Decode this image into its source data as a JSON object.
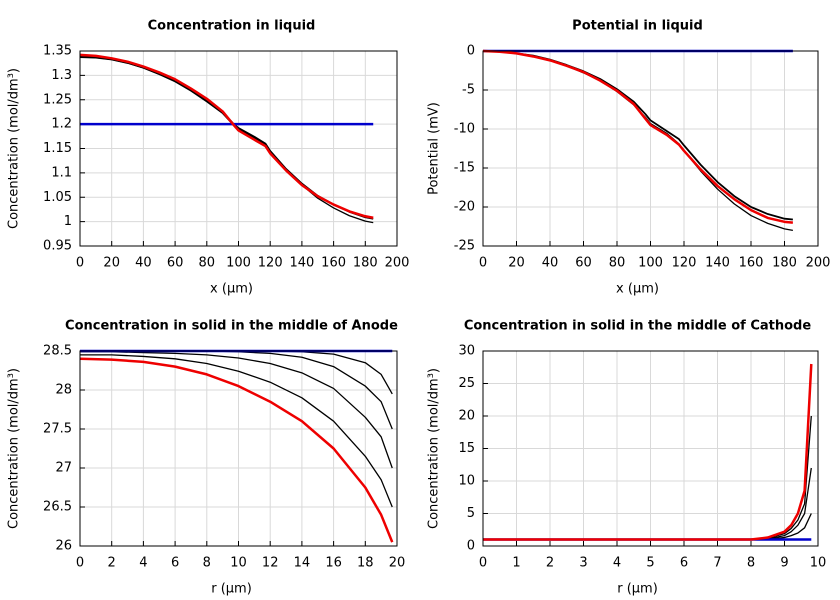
{
  "chart_data": [
    {
      "type": "line",
      "title": "Concentration in liquid",
      "xlabel": "x (µm)",
      "ylabel": "Concentration (mol/dm³)",
      "x": [
        0,
        10,
        20,
        30,
        40,
        50,
        60,
        70,
        80,
        90,
        97,
        100,
        110,
        117,
        120,
        130,
        140,
        150,
        160,
        170,
        180,
        185
      ],
      "xlim": [
        0,
        200
      ],
      "ylim": [
        0.95,
        1.35
      ],
      "grid": true,
      "xticks": [
        0,
        20,
        40,
        60,
        80,
        100,
        120,
        140,
        160,
        180,
        200
      ],
      "yticks": [
        0.95,
        1,
        1.05,
        1.1,
        1.15,
        1.2,
        1.25,
        1.3,
        1.35
      ],
      "series": [
        {
          "color": "#000000",
          "width": 1.3,
          "values": [
            1.337,
            1.336,
            1.332,
            1.325,
            1.315,
            1.302,
            1.287,
            1.268,
            1.246,
            1.222,
            1.197,
            1.19,
            1.172,
            1.158,
            1.143,
            1.106,
            1.075,
            1.048,
            1.028,
            1.012,
            1.001,
            0.998
          ]
        },
        {
          "color": "#000000",
          "width": 1.8,
          "values": [
            1.338,
            1.337,
            1.333,
            1.326,
            1.316,
            1.303,
            1.289,
            1.27,
            1.249,
            1.224,
            1.2,
            1.192,
            1.174,
            1.16,
            1.145,
            1.108,
            1.078,
            1.053,
            1.035,
            1.02,
            1.009,
            1.006
          ]
        },
        {
          "color": "#0000cc",
          "width": 2.5,
          "values": [
            1.2,
            1.2,
            1.2,
            1.2,
            1.2,
            1.2,
            1.2,
            1.2,
            1.2,
            1.2,
            1.2,
            1.2,
            1.2,
            1.2,
            1.2,
            1.2,
            1.2,
            1.2,
            1.2,
            1.2,
            1.2,
            1.2
          ]
        },
        {
          "color": "#ee0000",
          "width": 2.5,
          "values": [
            1.342,
            1.34,
            1.335,
            1.328,
            1.318,
            1.306,
            1.292,
            1.273,
            1.252,
            1.226,
            1.198,
            1.187,
            1.168,
            1.155,
            1.14,
            1.105,
            1.075,
            1.052,
            1.035,
            1.021,
            1.011,
            1.008
          ]
        }
      ]
    },
    {
      "type": "line",
      "title": "Potential in liquid",
      "xlabel": "x (µm)",
      "ylabel": "Potential (mV)",
      "x": [
        0,
        10,
        20,
        30,
        40,
        50,
        60,
        70,
        80,
        90,
        97,
        100,
        110,
        117,
        120,
        130,
        140,
        150,
        160,
        170,
        180,
        185
      ],
      "xlim": [
        0,
        200
      ],
      "ylim": [
        -25,
        0
      ],
      "grid": true,
      "xticks": [
        0,
        20,
        40,
        60,
        80,
        100,
        120,
        140,
        160,
        180,
        200
      ],
      "yticks": [
        -25,
        -20,
        -15,
        -10,
        -5,
        0
      ],
      "series": [
        {
          "color": "#000000",
          "width": 1.3,
          "values": [
            0,
            -0.1,
            -0.3,
            -0.7,
            -1.2,
            -1.9,
            -2.8,
            -3.8,
            -5.2,
            -6.9,
            -8.5,
            -9.3,
            -10.6,
            -11.9,
            -12.8,
            -15.4,
            -17.7,
            -19.6,
            -21.1,
            -22.1,
            -22.8,
            -23
          ]
        },
        {
          "color": "#000000",
          "width": 1.8,
          "values": [
            0,
            -0.1,
            -0.3,
            -0.6,
            -1.1,
            -1.8,
            -2.6,
            -3.6,
            -4.9,
            -6.5,
            -8.1,
            -8.9,
            -10.3,
            -11.3,
            -12.1,
            -14.6,
            -16.8,
            -18.6,
            -20,
            -20.9,
            -21.5,
            -21.6
          ]
        },
        {
          "color": "#0000cc",
          "width": 2.5,
          "values": [
            0,
            0,
            0,
            0,
            0,
            0,
            0,
            0,
            0,
            0,
            0,
            0,
            0,
            0,
            0,
            0,
            0,
            0,
            0,
            0,
            0,
            0
          ]
        },
        {
          "color": "#ee0000",
          "width": 2.5,
          "values": [
            0,
            -0.1,
            -0.3,
            -0.7,
            -1.2,
            -1.9,
            -2.7,
            -3.8,
            -5.1,
            -6.8,
            -8.7,
            -9.5,
            -10.8,
            -12,
            -12.8,
            -15.2,
            -17.3,
            -19,
            -20.4,
            -21.4,
            -21.9,
            -22
          ]
        }
      ]
    },
    {
      "type": "line",
      "title": "Concentration in solid in the middle of Anode",
      "xlabel": "r (µm)",
      "ylabel": "Concentration (mol/dm³)",
      "x": [
        0,
        2,
        4,
        6,
        8,
        10,
        12,
        14,
        16,
        18,
        19,
        19.7
      ],
      "xlim": [
        0,
        20
      ],
      "ylim": [
        26,
        28.5
      ],
      "grid": true,
      "xticks": [
        0,
        2,
        4,
        6,
        8,
        10,
        12,
        14,
        16,
        18,
        20
      ],
      "yticks": [
        26,
        26.5,
        27,
        27.5,
        28,
        28.5
      ],
      "series": [
        {
          "color": "#000000",
          "width": 1.3,
          "values": [
            28.5,
            28.5,
            28.5,
            28.5,
            28.5,
            28.5,
            28.5,
            28.49,
            28.46,
            28.35,
            28.2,
            27.95
          ]
        },
        {
          "color": "#000000",
          "width": 1.3,
          "values": [
            28.5,
            28.5,
            28.5,
            28.5,
            28.5,
            28.49,
            28.47,
            28.42,
            28.3,
            28.05,
            27.85,
            27.5
          ]
        },
        {
          "color": "#000000",
          "width": 1.3,
          "values": [
            28.49,
            28.49,
            28.48,
            28.47,
            28.45,
            28.41,
            28.34,
            28.22,
            28.02,
            27.65,
            27.4,
            27
          ]
        },
        {
          "color": "#000000",
          "width": 1.3,
          "values": [
            28.45,
            28.45,
            28.43,
            28.4,
            28.34,
            28.24,
            28.1,
            27.9,
            27.6,
            27.15,
            26.85,
            26.5
          ]
        },
        {
          "color": "#0000cc",
          "width": 2.5,
          "values": [
            28.5,
            28.5,
            28.5,
            28.5,
            28.5,
            28.5,
            28.5,
            28.5,
            28.5,
            28.5,
            28.5,
            28.5
          ]
        },
        {
          "color": "#ee0000",
          "width": 2.5,
          "values": [
            28.4,
            28.39,
            28.36,
            28.3,
            28.2,
            28.05,
            27.85,
            27.6,
            27.25,
            26.75,
            26.4,
            26.05
          ]
        }
      ]
    },
    {
      "type": "line",
      "title": "Concentration in solid in the middle of Cathode",
      "xlabel": "r (µm)",
      "ylabel": "Concentration (mol/dm³)",
      "x": [
        0,
        1,
        2,
        3,
        4,
        5,
        6,
        7,
        8,
        8.5,
        9,
        9.2,
        9.4,
        9.6,
        9.8
      ],
      "xlim": [
        0,
        10
      ],
      "ylim": [
        0,
        30
      ],
      "grid": true,
      "xticks": [
        0,
        1,
        2,
        3,
        4,
        5,
        6,
        7,
        8,
        9,
        10
      ],
      "yticks": [
        0,
        5,
        10,
        15,
        20,
        25,
        30
      ],
      "series": [
        {
          "color": "#000000",
          "width": 1.3,
          "values": [
            1,
            1,
            1,
            1,
            1,
            1,
            1,
            1,
            1,
            1.05,
            1.3,
            1.6,
            2,
            2.8,
            5
          ]
        },
        {
          "color": "#000000",
          "width": 1.3,
          "values": [
            1,
            1,
            1,
            1,
            1,
            1,
            1,
            1,
            1,
            1.1,
            1.6,
            2.2,
            3.2,
            5,
            12
          ]
        },
        {
          "color": "#000000",
          "width": 1.3,
          "values": [
            1,
            1,
            1,
            1,
            1,
            1,
            1,
            1,
            1,
            1.2,
            1.9,
            2.7,
            4,
            6.5,
            20
          ]
        },
        {
          "color": "#0000cc",
          "width": 2.5,
          "values": [
            1,
            1,
            1,
            1,
            1,
            1,
            1,
            1,
            1,
            1,
            1,
            1,
            1,
            1,
            1
          ]
        },
        {
          "color": "#ee0000",
          "width": 2.5,
          "values": [
            1,
            1,
            1,
            1,
            1,
            1,
            1,
            1,
            1,
            1.3,
            2.2,
            3.2,
            5,
            8.5,
            28
          ]
        }
      ]
    }
  ]
}
